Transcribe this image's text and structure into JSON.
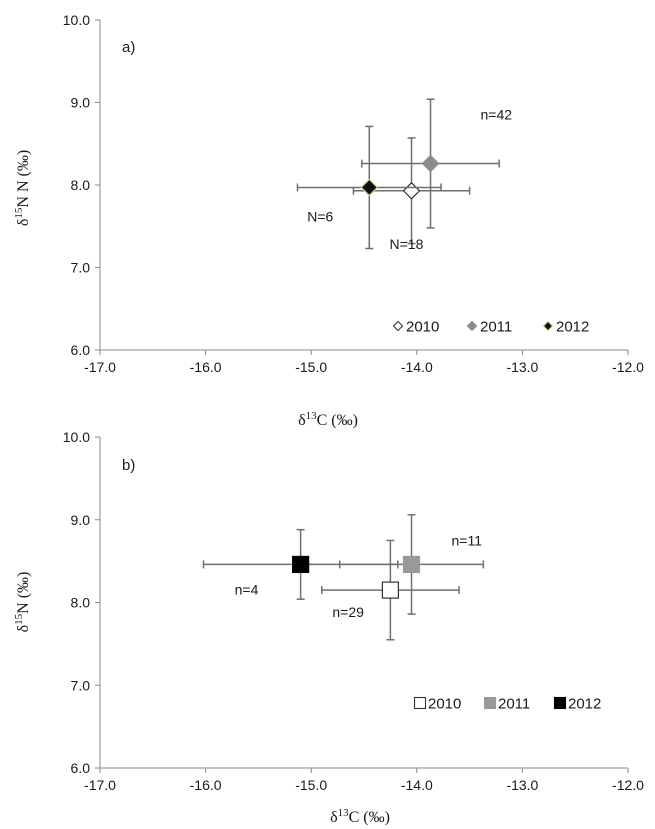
{
  "chart_data": [
    {
      "type": "scatter",
      "panel_label": "a)",
      "xlabel": "δ13C  (‰)",
      "ylabel": "δ15N N  (‰)",
      "xlim": [
        -17.0,
        -12.0
      ],
      "ylim": [
        6.0,
        10.0
      ],
      "x_ticks": [
        "-17.0",
        "-16.0",
        "-15.0",
        "-14.0",
        "-13.0",
        "-12.0"
      ],
      "y_ticks": [
        "6.0",
        "7.0",
        "8.0",
        "9.0",
        "10.0"
      ],
      "grid": false,
      "legend_position": "bottom-right",
      "series": [
        {
          "name": "2010",
          "marker": "diamond",
          "fill": "#ffffff",
          "stroke": "#333333",
          "x": -14.05,
          "y": 7.93,
          "x_err": 0.55,
          "y_err": 0.64,
          "label": "N=18"
        },
        {
          "name": "2011",
          "marker": "diamond",
          "fill": "#8c8c8c",
          "stroke": "#8c8c8c",
          "x": -13.87,
          "y": 8.26,
          "x_err": 0.65,
          "y_err": 0.78,
          "label": "n=42"
        },
        {
          "name": "2012",
          "marker": "diamond",
          "fill": "#111111",
          "stroke": "#c8c88a",
          "x": -14.45,
          "y": 7.97,
          "x_err": 0.68,
          "y_err": 0.74,
          "label": "N=6"
        }
      ]
    },
    {
      "type": "scatter",
      "panel_label": "b)",
      "xlabel": "δ13C (‰)",
      "ylabel": "δ15N (‰)",
      "xlim": [
        -17.0,
        -12.0
      ],
      "ylim": [
        6.0,
        10.0
      ],
      "x_ticks": [
        "-17.0",
        "-16.0",
        "-15.0",
        "-14.0",
        "-13.0",
        "-12.0"
      ],
      "y_ticks": [
        "6.0",
        "7.0",
        "8.0",
        "9.0",
        "10.0"
      ],
      "grid": false,
      "legend_position": "bottom-right",
      "series": [
        {
          "name": "2010",
          "marker": "square",
          "fill": "#ffffff",
          "stroke": "#333333",
          "x": -14.25,
          "y": 8.15,
          "x_err": 0.65,
          "y_err": 0.6,
          "label": "n=29"
        },
        {
          "name": "2011",
          "marker": "square",
          "fill": "#999999",
          "stroke": "#999999",
          "x": -14.05,
          "y": 8.46,
          "x_err": 0.68,
          "y_err": 0.6,
          "label": "n=11"
        },
        {
          "name": "2012",
          "marker": "square",
          "fill": "#000000",
          "stroke": "#000000",
          "x": -15.1,
          "y": 8.46,
          "x_err": 0.92,
          "y_err": 0.42,
          "label": "n=4"
        }
      ]
    }
  ]
}
